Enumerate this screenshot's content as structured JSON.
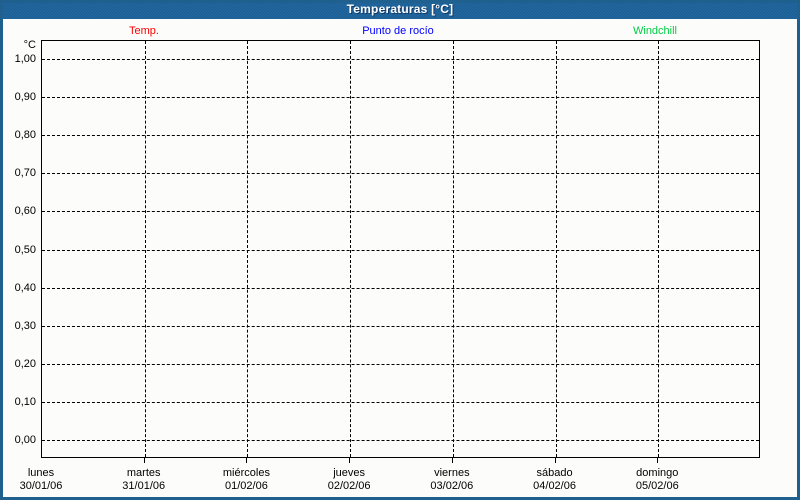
{
  "window": {
    "title": "Temperaturas [°C]"
  },
  "legend": [
    {
      "label": "Temp.",
      "color": "#ff0000"
    },
    {
      "label": "Punto de rocío",
      "color": "#0000ff"
    },
    {
      "label": "Windchill",
      "color": "#00cc44"
    }
  ],
  "chart_data": {
    "type": "line",
    "title": "Temperaturas [°C]",
    "ylabel": "°C",
    "unit_label": "°C",
    "ylim": [
      0.0,
      1.0
    ],
    "grid": "dashed",
    "legend_position": "top",
    "y_ticks": [
      {
        "value": 1.0,
        "label": "1,00"
      },
      {
        "value": 0.9,
        "label": "0,90"
      },
      {
        "value": 0.8,
        "label": "0,80"
      },
      {
        "value": 0.7,
        "label": "0,70"
      },
      {
        "value": 0.6,
        "label": "0,60"
      },
      {
        "value": 0.5,
        "label": "0,50"
      },
      {
        "value": 0.4,
        "label": "0,40"
      },
      {
        "value": 0.3,
        "label": "0,30"
      },
      {
        "value": 0.2,
        "label": "0,20"
      },
      {
        "value": 0.1,
        "label": "0,10"
      },
      {
        "value": 0.0,
        "label": "0,00"
      }
    ],
    "x_categories": [
      {
        "day": "lunes",
        "date": "30/01/06"
      },
      {
        "day": "martes",
        "date": "31/01/06"
      },
      {
        "day": "miércoles",
        "date": "01/02/06"
      },
      {
        "day": "jueves",
        "date": "02/02/06"
      },
      {
        "day": "viernes",
        "date": "03/02/06"
      },
      {
        "day": "sábado",
        "date": "04/02/06"
      },
      {
        "day": "domingo",
        "date": "05/02/06"
      }
    ],
    "series": [
      {
        "name": "Temp.",
        "color": "#ff0000",
        "values": []
      },
      {
        "name": "Punto de rocío",
        "color": "#0000ff",
        "values": []
      },
      {
        "name": "Windchill",
        "color": "#00cc44",
        "values": []
      }
    ]
  }
}
